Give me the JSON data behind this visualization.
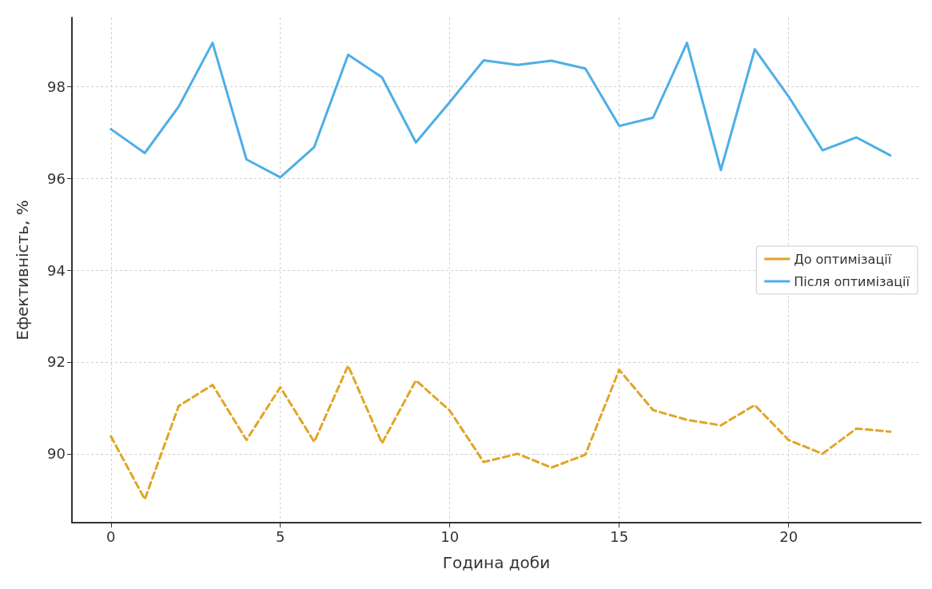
{
  "chart_data": {
    "type": "line",
    "xlabel": "Година доби",
    "ylabel": "Ефективність, %",
    "x": [
      0,
      1,
      2,
      3,
      4,
      5,
      6,
      7,
      8,
      9,
      10,
      11,
      12,
      13,
      14,
      15,
      16,
      17,
      18,
      19,
      20,
      21,
      22,
      23
    ],
    "series": [
      {
        "name": "До оптимізації",
        "color": "#e0a526",
        "line_style": "dashed",
        "values": [
          90.38,
          89.01,
          91.04,
          91.5,
          90.3,
          91.45,
          90.26,
          91.92,
          90.23,
          91.6,
          90.94,
          89.82,
          90.0,
          89.7,
          89.98,
          91.83,
          90.95,
          90.74,
          90.62,
          91.06,
          90.3,
          90.0,
          90.55,
          90.48
        ]
      },
      {
        "name": "Після оптимізації",
        "color": "#4eaee5",
        "line_style": "solid",
        "values": [
          97.07,
          96.55,
          97.56,
          98.95,
          96.41,
          96.02,
          96.68,
          98.69,
          98.2,
          96.78,
          97.66,
          98.57,
          98.47,
          98.56,
          98.39,
          97.14,
          97.32,
          98.95,
          96.18,
          98.81,
          97.78,
          96.61,
          96.89,
          96.5
        ]
      }
    ],
    "xlim": [
      -1.15,
      23.9
    ],
    "xticks": [
      0,
      5,
      10,
      15,
      20
    ],
    "ylim": [
      88.5,
      99.5
    ],
    "yticks": [
      90,
      92,
      94,
      96,
      98
    ],
    "grid": true,
    "legend": "right",
    "marker": "none"
  }
}
